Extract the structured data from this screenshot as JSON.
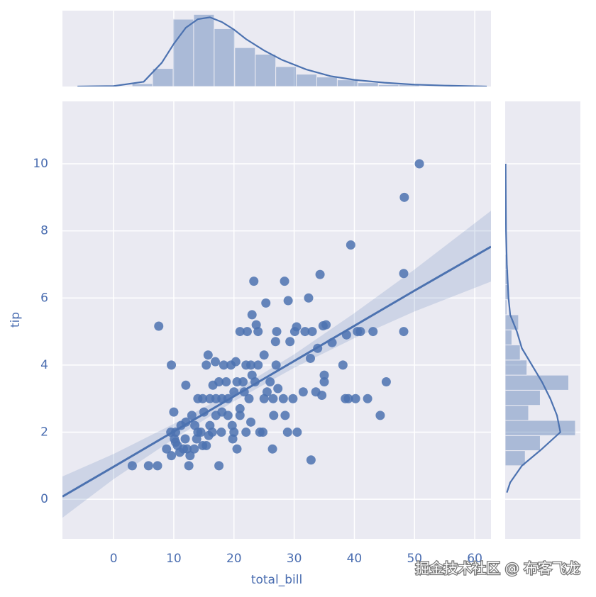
{
  "chart_data": [
    {
      "type": "scatter",
      "xlabel": "total_bill",
      "ylabel": "tip",
      "color": "#4c72b0",
      "grid": true,
      "xlim": [
        -8.5,
        62.7
      ],
      "ylim": [
        -1.18,
        11.86
      ],
      "xticks": [
        0,
        10,
        20,
        30,
        40,
        50,
        60
      ],
      "yticks": [
        0,
        2,
        4,
        6,
        8,
        10
      ],
      "x": [
        50.8,
        48.3,
        39.4,
        48.2,
        34.3,
        28.4,
        23.3,
        32.4,
        29,
        25.3,
        23,
        48.2,
        44.3,
        40.5,
        43.1,
        41,
        35.3,
        34.8,
        30.4,
        30.1,
        31.8,
        33,
        7.5,
        21,
        22.2,
        24,
        23.7,
        27.1,
        15.7,
        26.9,
        38.1,
        32.7,
        36.3,
        38.7,
        33.9,
        29.3,
        35,
        35,
        45.3,
        42.2,
        40.2,
        38.5,
        39,
        34.6,
        33.6,
        28.2,
        29.8,
        31.5,
        25,
        26.5,
        27.3,
        26.6,
        28.5,
        28.9,
        30.5,
        26.4,
        32.8,
        24.8,
        22.8,
        22,
        21,
        20.5,
        19.8,
        17.5,
        16.4,
        16,
        15.4,
        14.8,
        14.5,
        13.4,
        12.7,
        12.5,
        12.2,
        11.6,
        11,
        10.3,
        10.1,
        9.6,
        8.8,
        7.3,
        5.8,
        3.1,
        9.5,
        10,
        10.3,
        11.2,
        12,
        13,
        13.5,
        14,
        14.8,
        15,
        16,
        17,
        17.5,
        18,
        18.3,
        19,
        19.5,
        20,
        20.5,
        21.5,
        22,
        22.5,
        23.5,
        24,
        25,
        16.9,
        15.4,
        17,
        18,
        19,
        20,
        21,
        12,
        9.6,
        14,
        16.5,
        18.7,
        20.3,
        22.8,
        26,
        27,
        25.5,
        23,
        24.3,
        21.7,
        19.7,
        17.9,
        15.8,
        13.8,
        11.9,
        10.6
      ],
      "values": [
        10,
        9,
        7.58,
        6.73,
        6.7,
        6.5,
        6.5,
        6,
        5.92,
        5.85,
        5.5,
        5,
        2.5,
        5,
        5,
        5,
        5.2,
        5.17,
        5.14,
        5,
        5,
        5,
        5.16,
        5,
        5,
        5,
        5.2,
        5,
        4.3,
        4.7,
        4,
        4.2,
        4.67,
        4.9,
        4.5,
        4.7,
        3.7,
        3.5,
        3.5,
        3,
        3,
        3,
        3,
        3.1,
        3.2,
        3,
        3,
        3.2,
        3,
        3,
        3.3,
        2.5,
        2.5,
        2,
        2,
        1.5,
        1.17,
        2,
        2.3,
        2,
        2.5,
        1.5,
        1.8,
        1,
        2,
        2.2,
        1.6,
        1.6,
        2,
        1.5,
        1.3,
        1,
        1.5,
        1.5,
        1.4,
        1.7,
        1.8,
        1.3,
        1.5,
        1,
        1,
        1,
        2,
        2.6,
        2,
        2.2,
        2.3,
        2.5,
        2.2,
        2,
        3,
        2.6,
        3,
        3,
        3.5,
        3,
        4,
        3,
        4,
        3.2,
        3.5,
        3.5,
        4,
        3,
        3.5,
        4,
        4.3,
        4.1,
        4,
        2.5,
        2.6,
        2.5,
        2,
        2.7,
        3.4,
        4,
        3,
        3.4,
        3.5,
        4.1,
        4,
        3.5,
        4,
        3.2,
        3.7,
        2,
        3.2,
        2.2,
        2,
        1.9,
        1.8,
        1.8,
        1.6
      ],
      "regression": {
        "x": [
          -8.5,
          0,
          10,
          20,
          30,
          40,
          50,
          62.7
        ],
        "values": [
          0.08,
          0.97,
          2.02,
          3.07,
          4.12,
          5.17,
          6.22,
          7.53
        ],
        "ci_upper": [
          0.68,
          1.35,
          2.25,
          3.22,
          4.32,
          5.55,
          6.85,
          8.6
        ],
        "ci_lower": [
          -0.55,
          0.6,
          1.8,
          2.92,
          3.92,
          4.8,
          5.6,
          6.49
        ]
      }
    },
    {
      "type": "histogram",
      "color": "#4c72b0",
      "xlim": [
        -8.5,
        62.7
      ],
      "ylim": [
        0,
        80
      ],
      "bins": [
        3.07,
        6.48,
        9.89,
        13.3,
        16.71,
        20.12,
        23.53,
        26.94,
        30.35,
        33.76,
        37.17,
        40.58,
        43.99,
        47.4,
        50.81
      ],
      "counts": [
        3,
        19,
        71,
        76,
        61,
        41,
        34,
        21,
        13,
        10,
        7,
        4,
        2,
        2
      ],
      "kde": {
        "x": [
          -6,
          0,
          5,
          8,
          10,
          12,
          14,
          16,
          18,
          20,
          22,
          25,
          28,
          32,
          36,
          40,
          45,
          50,
          55,
          62
        ],
        "values": [
          0,
          0.5,
          5,
          25,
          45,
          62,
          71,
          73,
          68,
          60,
          50,
          38,
          28,
          18,
          11,
          7,
          4,
          2,
          1,
          0
        ]
      }
    },
    {
      "type": "histogram",
      "orientation": "horizontal",
      "color": "#4c72b0",
      "xlim": [
        0,
        45
      ],
      "ylim": [
        -1.18,
        11.86
      ],
      "bins": [
        1,
        1.45,
        1.9,
        2.35,
        2.8,
        3.25,
        3.7,
        4.15,
        4.6,
        5.05,
        5.5,
        5.95,
        6.4,
        6.85,
        7.3,
        7.75,
        8.2,
        8.65,
        9.1,
        9.55,
        10
      ],
      "counts": [
        12,
        21,
        42,
        14,
        21,
        38,
        13,
        9,
        4,
        8,
        1,
        2,
        2,
        1,
        0,
        0,
        0,
        1,
        1,
        1
      ],
      "kde": {
        "x": [
          0.2,
          0.5,
          1,
          1.5,
          2,
          2.5,
          3,
          3.5,
          4,
          4.5,
          5,
          5.5,
          6,
          7,
          8,
          10
        ],
        "values": [
          1,
          3,
          10,
          22,
          33,
          31,
          27,
          22,
          16,
          10,
          7,
          3,
          2,
          1,
          0.5,
          0.2
        ]
      }
    }
  ],
  "watermark": "掘金技术社区 @ 布客飞龙"
}
